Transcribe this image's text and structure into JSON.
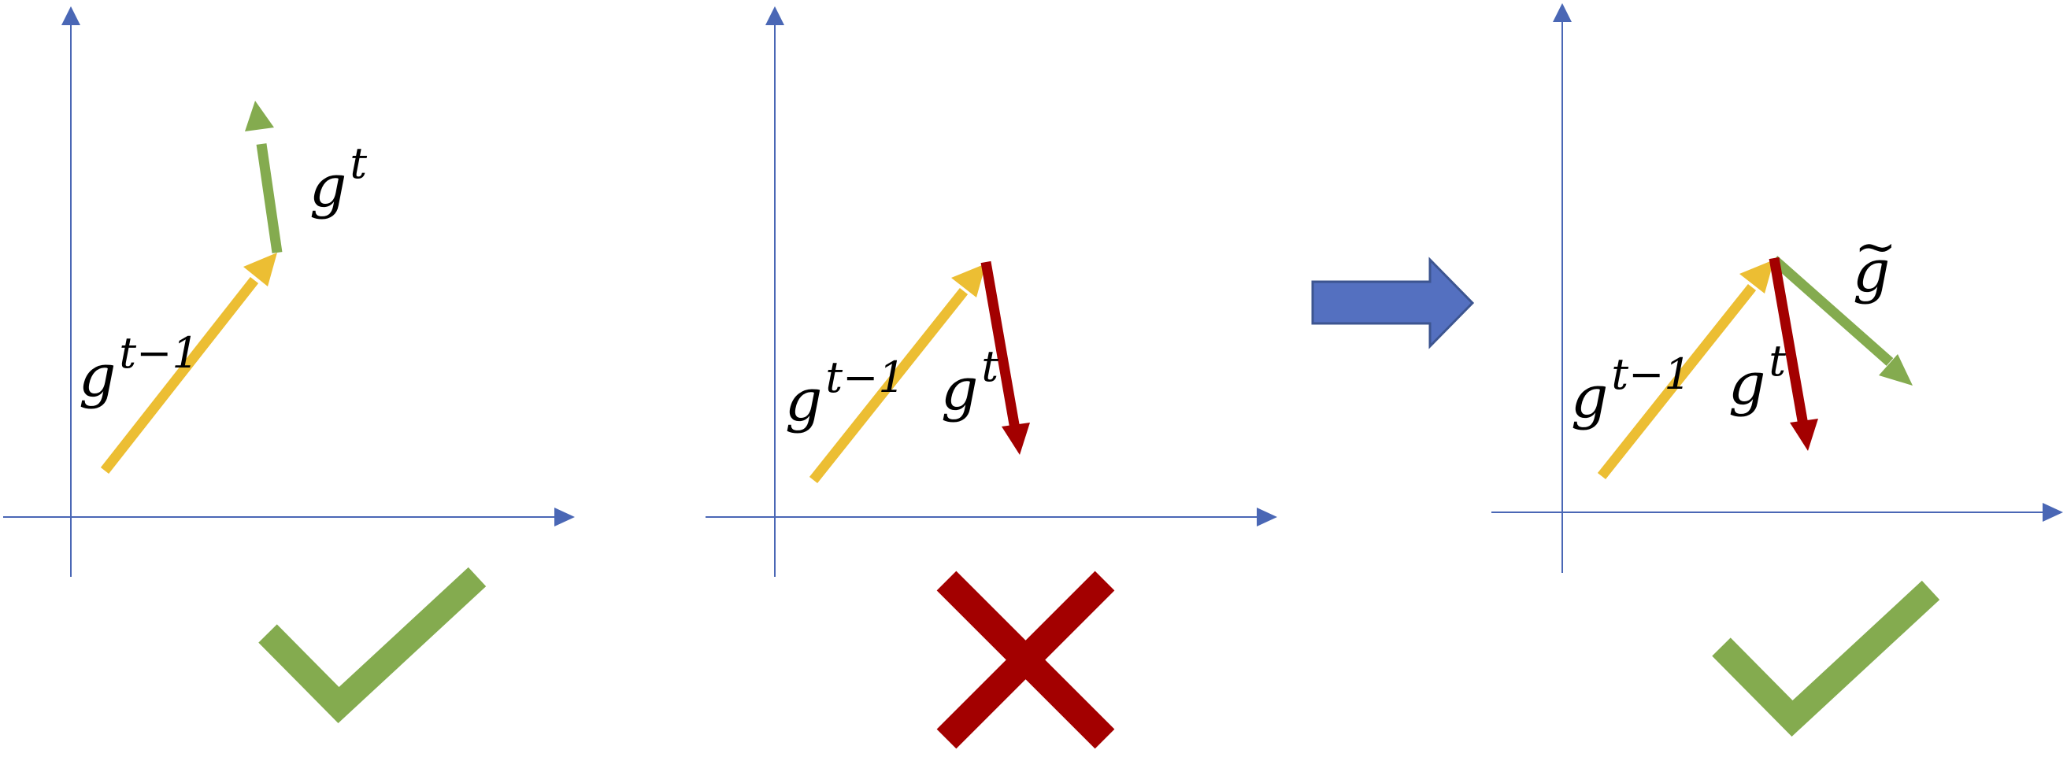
{
  "colors": {
    "axis": "#4a67b5",
    "previous_gradient": "#ecbe33",
    "aligned_gradient": "#84ab4f",
    "conflicting_gradient": "#a30000",
    "arrow_fill": "#5470c0",
    "arrow_stroke": "#3d5590",
    "check": "#84ab4f",
    "cross": "#a30000"
  },
  "panels": [
    {
      "labels": {
        "prev_base": "g",
        "prev_sup": "t−1",
        "cur_base": "g",
        "cur_sup": "t"
      },
      "verdict": "check-icon"
    },
    {
      "labels": {
        "prev_base": "g",
        "prev_sup": "t−1",
        "cur_base": "g",
        "cur_sup": "t"
      },
      "verdict": "cross-icon"
    },
    {
      "labels": {
        "prev_base": "g",
        "prev_sup": "t−1",
        "cur_base": "g",
        "cur_sup": "t",
        "proj_base": "g",
        "proj_tilde": "~"
      },
      "verdict": "check-icon"
    }
  ]
}
